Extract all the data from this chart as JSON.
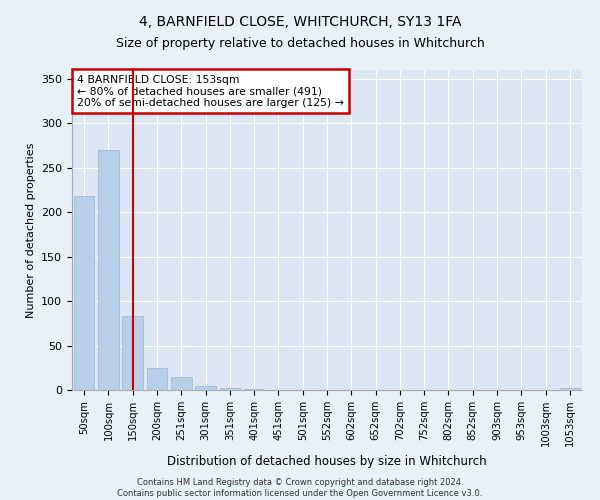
{
  "title1": "4, BARNFIELD CLOSE, WHITCHURCH, SY13 1FA",
  "title2": "Size of property relative to detached houses in Whitchurch",
  "xlabel": "Distribution of detached houses by size in Whitchurch",
  "ylabel": "Number of detached properties",
  "categories": [
    "50sqm",
    "100sqm",
    "150sqm",
    "200sqm",
    "251sqm",
    "301sqm",
    "351sqm",
    "401sqm",
    "451sqm",
    "501sqm",
    "552sqm",
    "602sqm",
    "652sqm",
    "702sqm",
    "752sqm",
    "802sqm",
    "852sqm",
    "903sqm",
    "953sqm",
    "1003sqm",
    "1053sqm"
  ],
  "values": [
    218,
    270,
    83,
    25,
    15,
    5,
    2,
    1,
    0,
    0,
    0,
    0,
    0,
    0,
    0,
    0,
    0,
    0,
    0,
    0,
    2
  ],
  "bar_color": "#b8cfe8",
  "bar_edge_color": "#9ab8d8",
  "vline_x": 2,
  "vline_color": "#cc0000",
  "annotation_text": "4 BARNFIELD CLOSE: 153sqm\n← 80% of detached houses are smaller (491)\n20% of semi-detached houses are larger (125) →",
  "annotation_box_color": "#cc0000",
  "background_color": "#dce6f5",
  "fig_background_color": "#e8f0f8",
  "footer_text": "Contains HM Land Registry data © Crown copyright and database right 2024.\nContains public sector information licensed under the Open Government Licence v3.0.",
  "ylim": [
    0,
    360
  ],
  "yticks": [
    0,
    50,
    100,
    150,
    200,
    250,
    300,
    350
  ]
}
